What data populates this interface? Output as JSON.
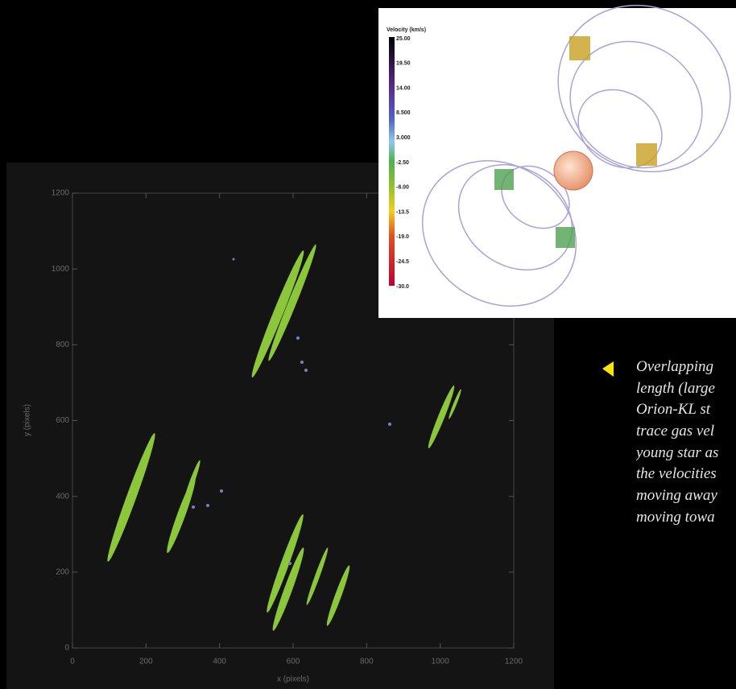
{
  "plot": {
    "xlabel": "x (pixels)",
    "ylabel": "y (pixels)",
    "xlim": [
      0,
      1200
    ],
    "ylim": [
      0,
      1200
    ],
    "xticks": [
      0,
      200,
      400,
      600,
      800,
      1000,
      1200
    ],
    "yticks": [
      0,
      200,
      400,
      600,
      800,
      1000,
      1200
    ]
  },
  "inset": {
    "colorbar_title": "Velocity (km/s)",
    "colorbar_labels": [
      "25.00",
      "19.50",
      "14.00",
      "8.500",
      "3.000",
      "-2.50",
      "-8.00",
      "-13.5",
      "-19.0",
      "-24.5",
      "-30.0"
    ]
  },
  "caption": {
    "lines": [
      "Overlapping",
      "length (large",
      "Orion-KL st",
      "trace gas vel",
      "young star as",
      "the velocities",
      "moving away",
      "moving towa"
    ]
  }
}
